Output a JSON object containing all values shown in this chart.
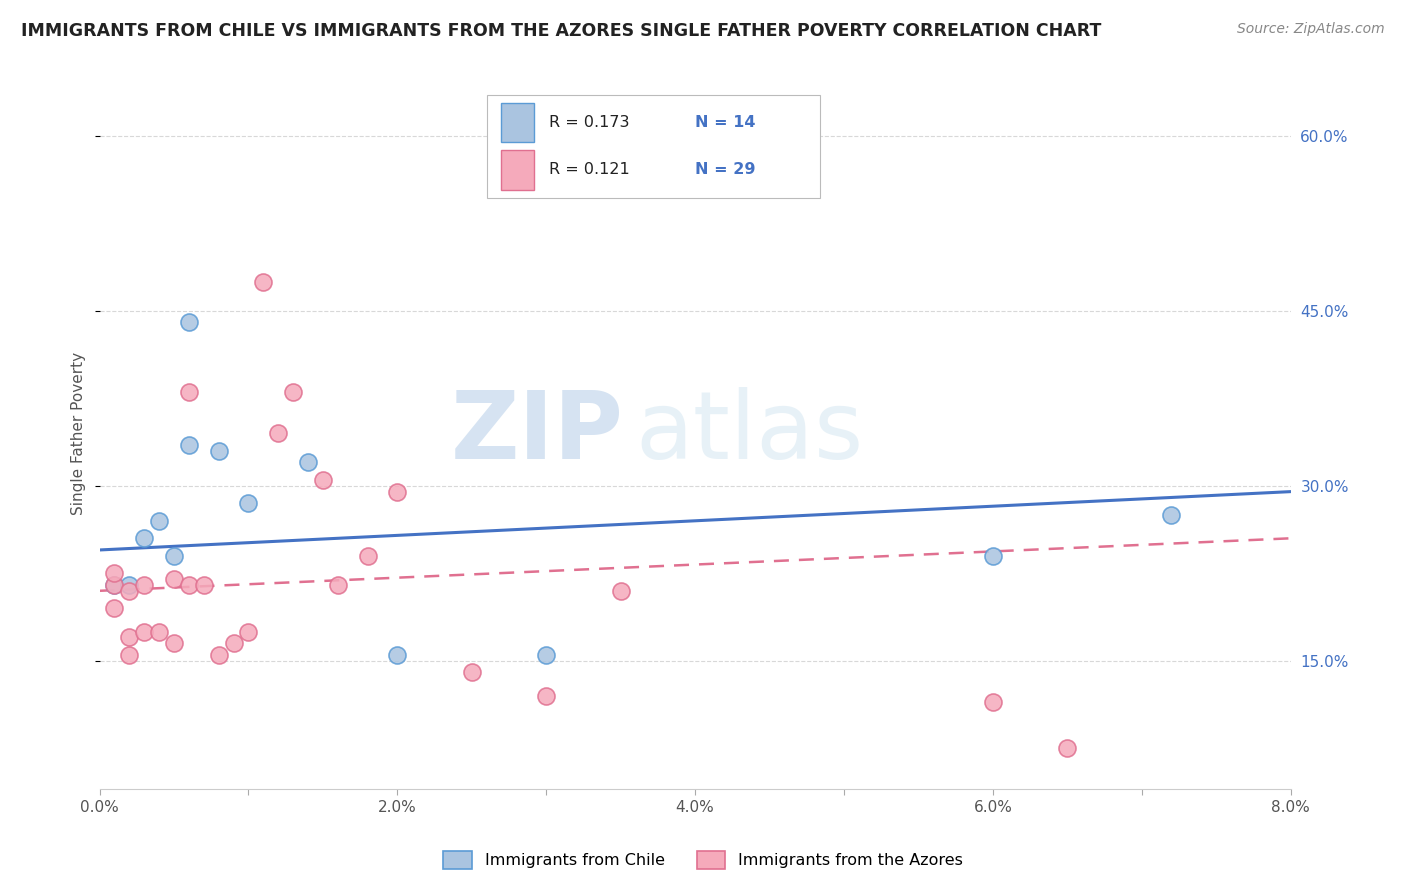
{
  "title": "IMMIGRANTS FROM CHILE VS IMMIGRANTS FROM THE AZORES SINGLE FATHER POVERTY CORRELATION CHART",
  "source": "Source: ZipAtlas.com",
  "ylabel": "Single Father Poverty",
  "xmin": 0.0,
  "xmax": 0.08,
  "ymin": 0.04,
  "ymax": 0.65,
  "yticks": [
    0.15,
    0.3,
    0.45,
    0.6
  ],
  "ytick_labels": [
    "15.0%",
    "30.0%",
    "45.0%",
    "60.0%"
  ],
  "xticks": [
    0.0,
    0.01,
    0.02,
    0.03,
    0.04,
    0.05,
    0.06,
    0.07,
    0.08
  ],
  "xtick_labels": [
    "0.0%",
    "",
    "2.0%",
    "",
    "4.0%",
    "",
    "6.0%",
    "",
    "8.0%"
  ],
  "watermark_zip": "ZIP",
  "watermark_atlas": "atlas",
  "legend_r1": "R = 0.173",
  "legend_n1": "N = 14",
  "legend_r2": "R = 0.121",
  "legend_n2": "N = 29",
  "chile_color": "#aac4e0",
  "azores_color": "#f5aabb",
  "chile_edge_color": "#5b9bd5",
  "azores_edge_color": "#e07090",
  "chile_line_color": "#4472c4",
  "azores_line_color": "#e07090",
  "chile_points_x": [
    0.001,
    0.002,
    0.003,
    0.004,
    0.005,
    0.006,
    0.006,
    0.008,
    0.01,
    0.014,
    0.02,
    0.03,
    0.06,
    0.072
  ],
  "chile_points_y": [
    0.215,
    0.215,
    0.255,
    0.27,
    0.24,
    0.335,
    0.44,
    0.33,
    0.285,
    0.32,
    0.155,
    0.155,
    0.24,
    0.275
  ],
  "azores_points_x": [
    0.001,
    0.001,
    0.001,
    0.002,
    0.002,
    0.002,
    0.003,
    0.003,
    0.004,
    0.005,
    0.005,
    0.006,
    0.006,
    0.007,
    0.008,
    0.009,
    0.01,
    0.011,
    0.012,
    0.013,
    0.015,
    0.016,
    0.018,
    0.02,
    0.025,
    0.03,
    0.035,
    0.06,
    0.065
  ],
  "azores_points_y": [
    0.195,
    0.215,
    0.225,
    0.21,
    0.17,
    0.155,
    0.215,
    0.175,
    0.175,
    0.165,
    0.22,
    0.38,
    0.215,
    0.215,
    0.155,
    0.165,
    0.175,
    0.475,
    0.345,
    0.38,
    0.305,
    0.215,
    0.24,
    0.295,
    0.14,
    0.12,
    0.21,
    0.115,
    0.075
  ],
  "chile_trend_x0": 0.0,
  "chile_trend_x1": 0.08,
  "chile_trend_y0": 0.245,
  "chile_trend_y1": 0.295,
  "azores_trend_x0": 0.0,
  "azores_trend_x1": 0.08,
  "azores_trend_y0": 0.21,
  "azores_trend_y1": 0.255,
  "background_color": "#ffffff",
  "grid_color": "#d8d8d8",
  "right_label_color": "#4472c4",
  "text_color": "#222222",
  "source_color": "#888888",
  "marker_size": 150
}
